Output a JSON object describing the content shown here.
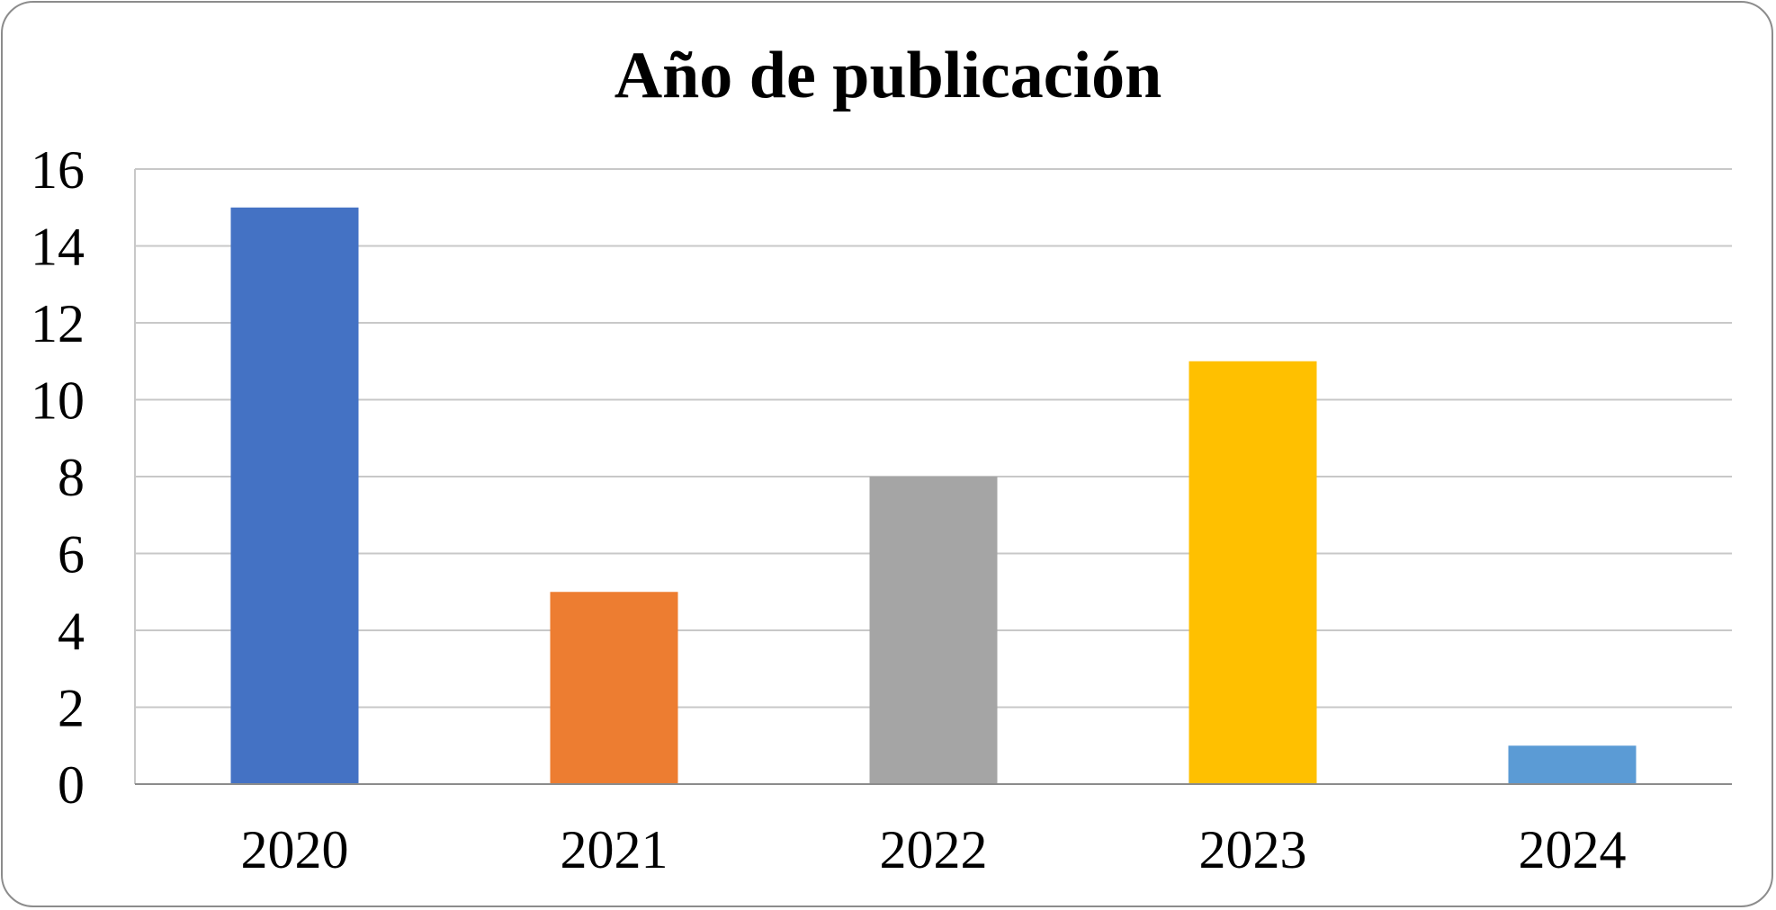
{
  "chart_data": {
    "type": "bar",
    "title": "Año de publicación",
    "xlabel": "",
    "ylabel": "",
    "categories": [
      "2020",
      "2021",
      "2022",
      "2023",
      "2024"
    ],
    "values": [
      15,
      5,
      8,
      11,
      1
    ],
    "colors": [
      "#4472C4",
      "#ED7D31",
      "#A5A5A5",
      "#FFC000",
      "#5B9BD5"
    ],
    "ylim": [
      0,
      16
    ],
    "yticks": [
      0,
      2,
      4,
      6,
      8,
      10,
      12,
      14,
      16
    ],
    "grid": true,
    "legend": "none"
  }
}
